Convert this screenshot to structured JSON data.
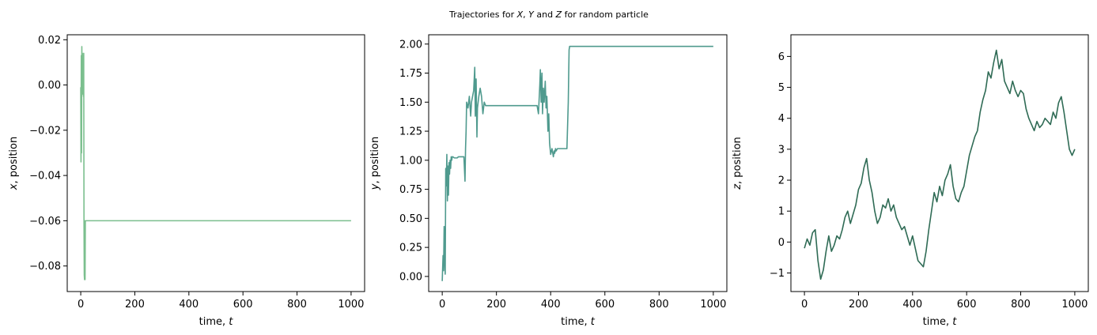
{
  "figure": {
    "suptitle_parts": [
      "Trajectories for ",
      "X",
      ", ",
      "Y",
      " and ",
      "Z",
      " for random particle"
    ]
  },
  "chart_data": [
    {
      "type": "line",
      "xlabel_parts": [
        "time, ",
        "t"
      ],
      "ylabel_parts": [
        "x",
        ", position"
      ],
      "xlim": [
        -50,
        1050
      ],
      "ylim": [
        -0.0913,
        0.0222
      ],
      "xticks": [
        0,
        200,
        400,
        600,
        800,
        1000
      ],
      "xtick_labels": [
        "0",
        "200",
        "400",
        "600",
        "800",
        "1000"
      ],
      "yticks": [
        -0.08,
        -0.06,
        -0.04,
        -0.02,
        0.0,
        0.02
      ],
      "ytick_labels": [
        "−0.08",
        "−0.06",
        "−0.04",
        "−0.02",
        "0.00",
        "0.02"
      ],
      "grid": false,
      "color": "#7bbf8e",
      "series": [
        {
          "x": [
            0,
            1,
            2,
            3,
            4,
            5,
            6,
            7,
            8,
            9,
            10,
            11,
            12,
            13,
            14,
            15,
            16,
            17,
            18,
            20,
            25,
            40,
            100,
            200,
            400,
            600,
            800,
            1000
          ],
          "y": [
            -0.001,
            -0.034,
            0.013,
            -0.03,
            0.017,
            0.005,
            0.014,
            -0.004,
            0.01,
            0.013,
            -0.005,
            0.014,
            -0.06,
            -0.084,
            -0.086,
            -0.06,
            -0.086,
            -0.06,
            -0.06,
            -0.06,
            -0.06,
            -0.06,
            -0.06,
            -0.06,
            -0.06,
            -0.06,
            -0.06,
            -0.06
          ]
        }
      ]
    },
    {
      "type": "line",
      "xlabel_parts": [
        "time, ",
        "t"
      ],
      "ylabel_parts": [
        "y",
        ", position"
      ],
      "xlim": [
        -50,
        1050
      ],
      "ylim": [
        -0.13,
        2.08
      ],
      "xticks": [
        0,
        200,
        400,
        600,
        800,
        1000
      ],
      "xtick_labels": [
        "0",
        "200",
        "400",
        "600",
        "800",
        "1000"
      ],
      "yticks": [
        0.0,
        0.25,
        0.5,
        0.75,
        1.0,
        1.25,
        1.5,
        1.75,
        2.0
      ],
      "ytick_labels": [
        "0.00",
        "0.25",
        "0.50",
        "0.75",
        "1.00",
        "1.25",
        "1.50",
        "1.75",
        "2.00"
      ],
      "grid": false,
      "color": "#4f9a8e",
      "series": [
        {
          "x": [
            0,
            3,
            5,
            7,
            9,
            11,
            13,
            15,
            17,
            19,
            21,
            23,
            25,
            27,
            29,
            31,
            33,
            35,
            37,
            39,
            45,
            55,
            60,
            70,
            80,
            84,
            86,
            88,
            90,
            95,
            100,
            105,
            108,
            112,
            116,
            120,
            122,
            125,
            128,
            130,
            135,
            140,
            145,
            150,
            155,
            160,
            200,
            300,
            350,
            355,
            360,
            362,
            365,
            368,
            370,
            373,
            376,
            380,
            383,
            386,
            390,
            393,
            396,
            400,
            405,
            410,
            413,
            415,
            418,
            420,
            425,
            440,
            460,
            465,
            468,
            470,
            475,
            500,
            600,
            700,
            800,
            900,
            1000
          ],
          "y": [
            -0.04,
            0.18,
            0.05,
            0.43,
            0.15,
            0.02,
            0.93,
            0.78,
            1.05,
            0.65,
            0.95,
            0.7,
            0.98,
            0.88,
            1.0,
            0.93,
            1.03,
            1.0,
            1.03,
            1.03,
            1.02,
            1.02,
            1.03,
            1.03,
            1.03,
            0.82,
            1.1,
            1.25,
            1.5,
            1.45,
            1.55,
            1.38,
            1.5,
            1.55,
            1.6,
            1.8,
            1.38,
            1.7,
            1.2,
            1.45,
            1.55,
            1.62,
            1.55,
            1.4,
            1.5,
            1.47,
            1.47,
            1.47,
            1.47,
            1.4,
            1.65,
            1.78,
            1.5,
            1.75,
            1.4,
            1.62,
            1.5,
            1.68,
            1.45,
            1.55,
            1.25,
            1.4,
            1.15,
            1.05,
            1.1,
            1.03,
            1.08,
            1.06,
            1.1,
            1.08,
            1.1,
            1.1,
            1.1,
            1.5,
            1.95,
            1.98,
            1.98,
            1.98,
            1.98,
            1.98,
            1.98,
            1.98,
            1.98
          ]
        }
      ]
    },
    {
      "type": "line",
      "xlabel_parts": [
        "time, ",
        "t"
      ],
      "ylabel_parts": [
        "z",
        ", position"
      ],
      "xlim": [
        -50,
        1050
      ],
      "ylim": [
        -1.6,
        6.7
      ],
      "xticks": [
        0,
        200,
        400,
        600,
        800,
        1000
      ],
      "xtick_labels": [
        "0",
        "200",
        "400",
        "600",
        "800",
        "1000"
      ],
      "yticks": [
        -1,
        0,
        1,
        2,
        3,
        4,
        5,
        6
      ],
      "ytick_labels": [
        "−1",
        "0",
        "1",
        "2",
        "3",
        "4",
        "5",
        "6"
      ],
      "grid": false,
      "color": "#2f6b55",
      "series": [
        {
          "x": [
            0,
            10,
            20,
            30,
            40,
            50,
            60,
            70,
            80,
            90,
            100,
            110,
            120,
            130,
            140,
            150,
            160,
            170,
            180,
            190,
            200,
            210,
            220,
            230,
            240,
            250,
            260,
            270,
            280,
            290,
            300,
            310,
            320,
            330,
            340,
            350,
            360,
            370,
            380,
            390,
            400,
            410,
            420,
            430,
            440,
            450,
            460,
            470,
            480,
            490,
            500,
            510,
            520,
            530,
            540,
            550,
            560,
            570,
            580,
            590,
            600,
            610,
            620,
            630,
            640,
            650,
            660,
            670,
            680,
            690,
            700,
            710,
            720,
            730,
            740,
            750,
            760,
            770,
            780,
            790,
            800,
            810,
            820,
            830,
            840,
            850,
            860,
            870,
            880,
            890,
            900,
            910,
            920,
            930,
            940,
            950,
            960,
            970,
            980,
            990,
            1000
          ],
          "y": [
            -0.2,
            0.1,
            -0.1,
            0.3,
            0.4,
            -0.6,
            -1.2,
            -0.9,
            -0.3,
            0.2,
            -0.3,
            -0.1,
            0.2,
            0.1,
            0.4,
            0.8,
            1.0,
            0.6,
            0.9,
            1.2,
            1.7,
            1.9,
            2.4,
            2.7,
            2.0,
            1.6,
            1.0,
            0.6,
            0.8,
            1.2,
            1.1,
            1.4,
            1.0,
            1.2,
            0.8,
            0.6,
            0.4,
            0.5,
            0.2,
            -0.1,
            0.2,
            -0.2,
            -0.6,
            -0.7,
            -0.8,
            -0.3,
            0.4,
            1.0,
            1.6,
            1.3,
            1.8,
            1.5,
            2.0,
            2.2,
            2.5,
            1.8,
            1.4,
            1.3,
            1.6,
            1.8,
            2.3,
            2.8,
            3.1,
            3.4,
            3.6,
            4.2,
            4.6,
            4.9,
            5.5,
            5.3,
            5.8,
            6.2,
            5.6,
            5.9,
            5.2,
            5.0,
            4.8,
            5.2,
            4.9,
            4.7,
            4.9,
            4.8,
            4.3,
            4.0,
            3.8,
            3.6,
            3.9,
            3.7,
            3.8,
            4.0,
            3.9,
            3.8,
            4.2,
            4.0,
            4.5,
            4.7,
            4.2,
            3.6,
            3.0,
            2.8,
            3.0
          ]
        }
      ]
    }
  ]
}
